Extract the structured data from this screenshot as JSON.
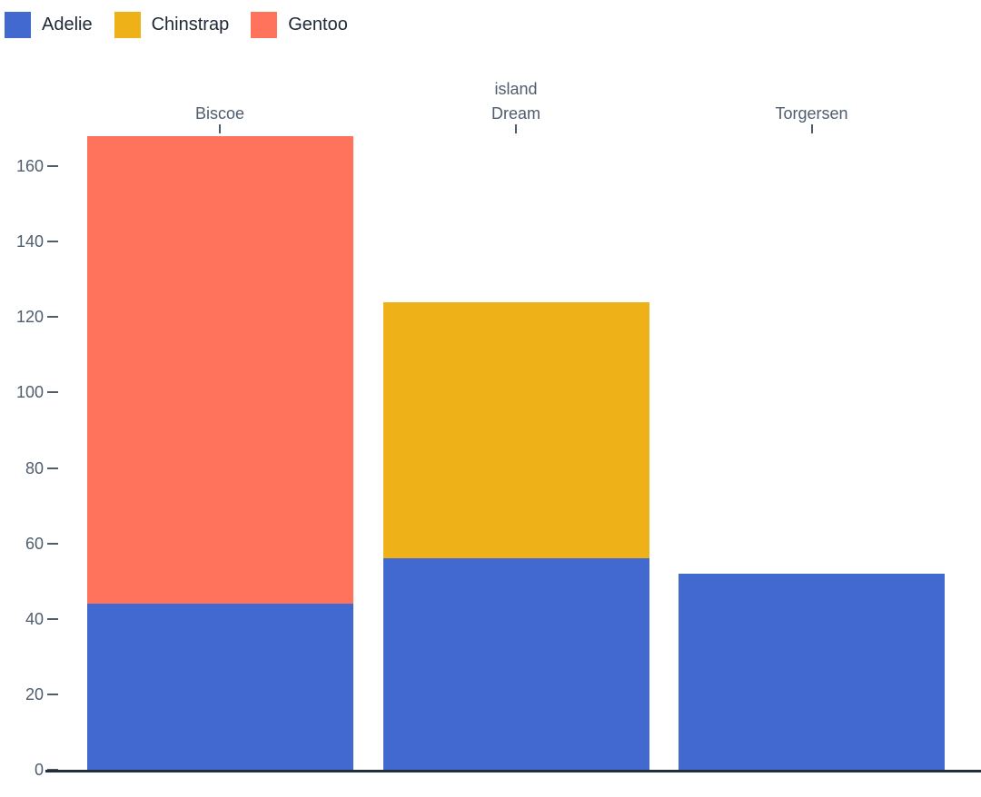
{
  "legend": {
    "items": [
      {
        "label": "Adelie",
        "color": "#4269d0"
      },
      {
        "label": "Chinstrap",
        "color": "#efb118"
      },
      {
        "label": "Gentoo",
        "color": "#ff725c"
      }
    ]
  },
  "chart_data": {
    "type": "bar",
    "stacked": true,
    "orientation": "vertical",
    "title": "",
    "x_axis": {
      "label": "island",
      "position": "top",
      "categories": [
        "Biscoe",
        "Dream",
        "Torgersen"
      ]
    },
    "y_axis": {
      "label": "",
      "ticks": [
        0,
        20,
        40,
        60,
        80,
        100,
        120,
        140,
        160
      ],
      "range": [
        0,
        168
      ],
      "grid": false
    },
    "series": [
      {
        "name": "Adelie",
        "color": "#4269d0",
        "values": [
          44,
          56,
          52
        ]
      },
      {
        "name": "Chinstrap",
        "color": "#efb118",
        "values": [
          0,
          68,
          0
        ]
      },
      {
        "name": "Gentoo",
        "color": "#ff725c",
        "values": [
          124,
          0,
          0
        ]
      }
    ],
    "totals": [
      168,
      124,
      52
    ],
    "legend_position": "top-left",
    "colors": {
      "axis_text": "#4f5d6d",
      "axis_line": "#222e3a",
      "legend_text": "#1d2937"
    }
  }
}
